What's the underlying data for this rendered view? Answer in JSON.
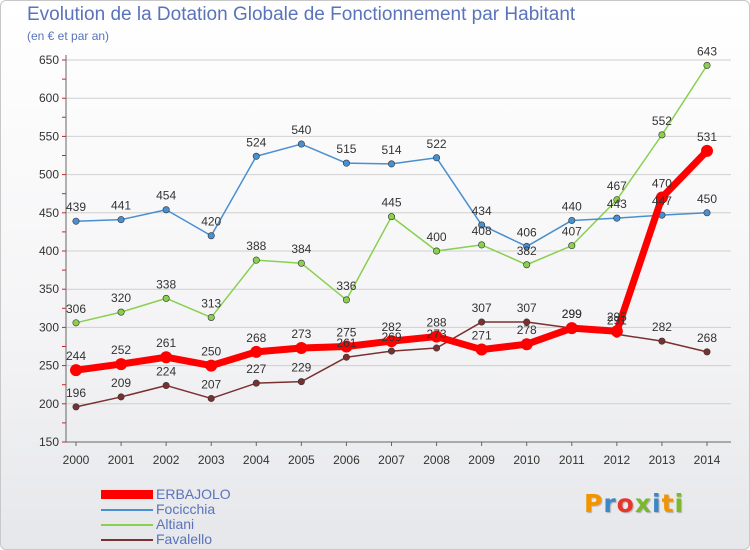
{
  "title": "Evolution de la Dotation Globale de Fonctionnement par Habitant",
  "subtitle": "(en € et par an)",
  "logo": {
    "text": "Proxiti",
    "colors": [
      "#f29400",
      "#3c87c6",
      "#e8352a",
      "#7cb82f",
      "#3c87c6",
      "#f29400",
      "#7cb82f"
    ]
  },
  "chart_data": {
    "type": "line",
    "title": "Evolution de la Dotation Globale de Fonctionnement par Habitant",
    "subtitle": "(en € et par an)",
    "xlabel": "",
    "ylabel": "",
    "x": [
      "2000",
      "2001",
      "2002",
      "2003",
      "2004",
      "2005",
      "2006",
      "2007",
      "2008",
      "2009",
      "2010",
      "2011",
      "2012",
      "2013",
      "2014"
    ],
    "ylim": [
      150,
      650
    ],
    "yticks": [
      "150",
      "200",
      "250",
      "300",
      "350",
      "400",
      "450",
      "500",
      "550",
      "600",
      "650"
    ],
    "grid": "horizontal",
    "legend": "bottom-left",
    "series": [
      {
        "name": "ERBAJOLO",
        "color": "#ff0000",
        "values": [
          244,
          252,
          261,
          250,
          268,
          273,
          275,
          282,
          288,
          271,
          278,
          299,
          295,
          470,
          531
        ]
      },
      {
        "name": "Focicchia",
        "color": "#4a8fd0",
        "values": [
          439,
          441,
          454,
          420,
          524,
          540,
          515,
          514,
          522,
          434,
          406,
          440,
          443,
          447,
          450
        ]
      },
      {
        "name": "Altiani",
        "color": "#88d04e",
        "values": [
          306,
          320,
          338,
          313,
          388,
          384,
          336,
          445,
          400,
          408,
          382,
          407,
          467,
          552,
          643
        ]
      },
      {
        "name": "Favalello",
        "color": "#7a3030",
        "values": [
          196,
          209,
          224,
          207,
          227,
          229,
          261,
          269,
          273,
          307,
          307,
          299,
          291,
          282,
          268
        ]
      }
    ]
  }
}
